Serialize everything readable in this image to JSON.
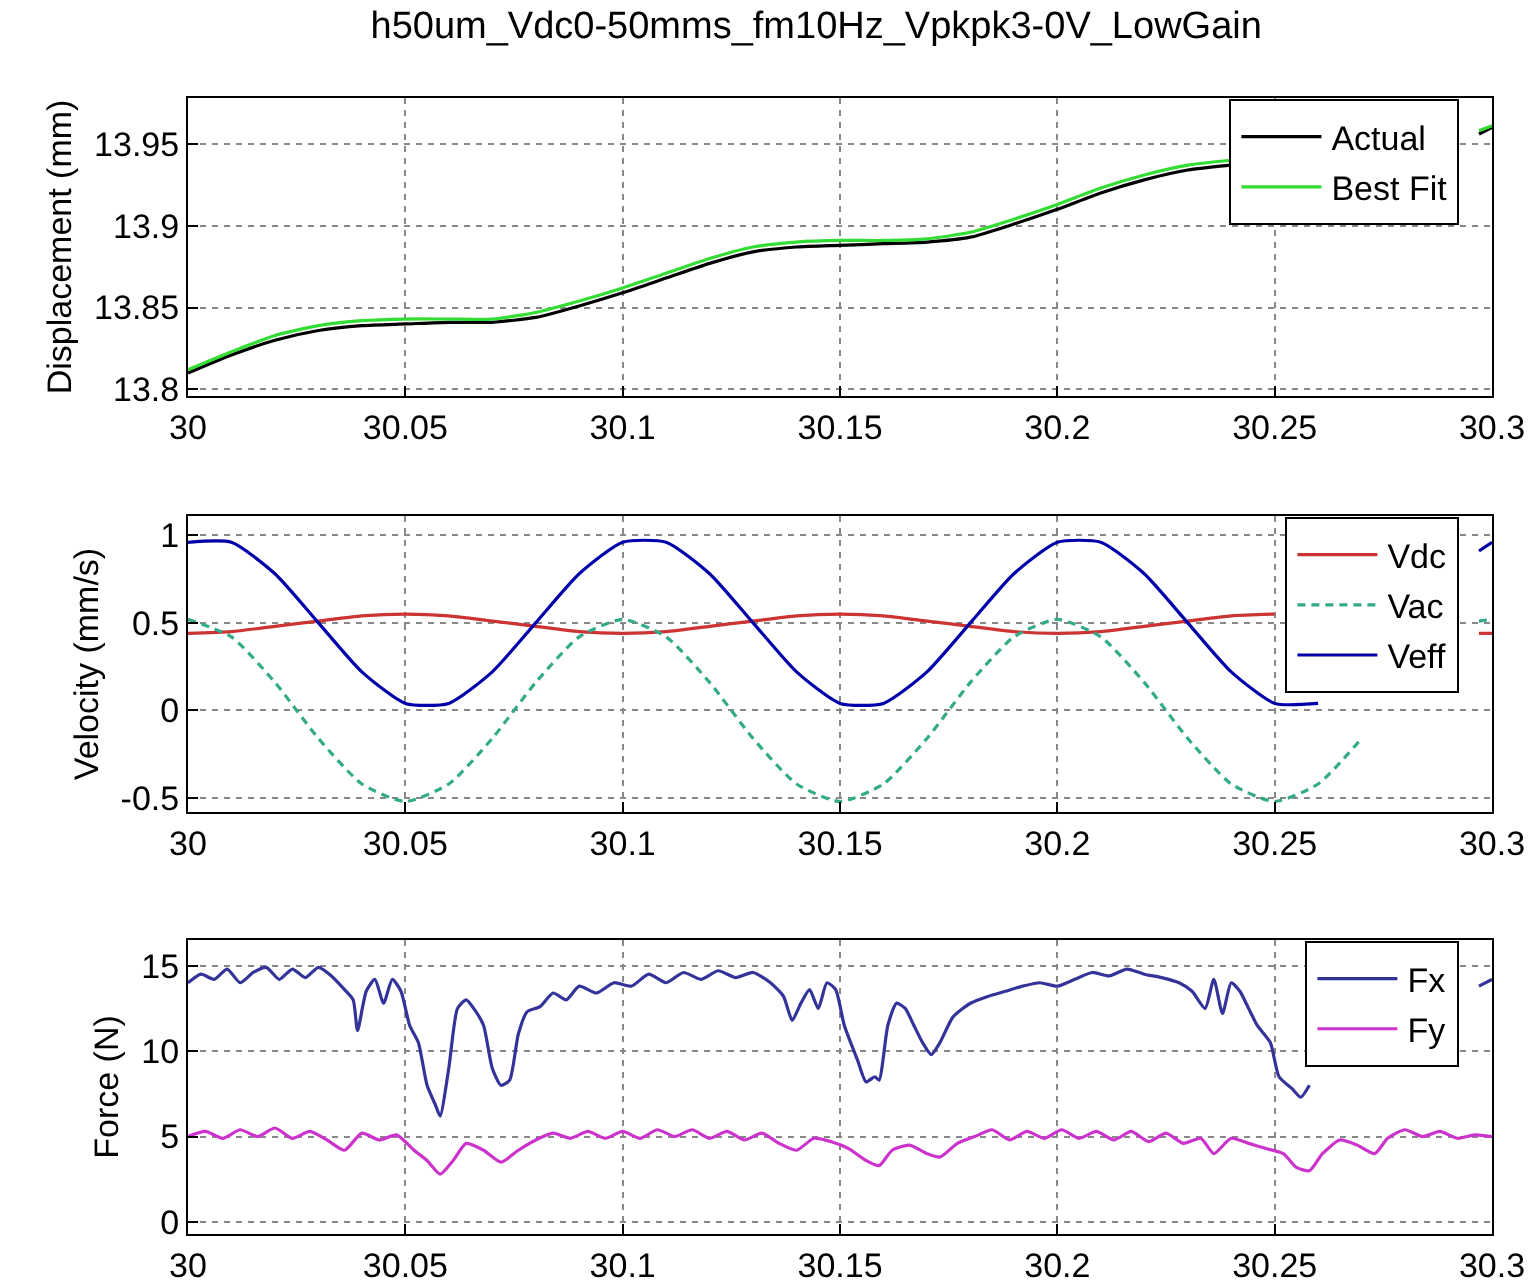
{
  "chart_data": [
    {
      "type": "line",
      "title": "h50um_Vdc0-50mms_fm10Hz_Vpkpk3-0V_LowGain",
      "ylabel": "Displacement (mm)",
      "x": [
        30,
        30.01,
        30.02,
        30.03,
        30.04,
        30.05,
        30.06,
        30.07,
        30.08,
        30.09,
        30.1,
        30.11,
        30.12,
        30.13,
        30.14,
        30.15,
        30.16,
        30.17,
        30.18,
        30.19,
        30.2,
        30.21,
        30.22,
        30.23,
        30.24,
        30.25,
        30.26,
        30.27,
        30.28,
        30.29,
        30.297,
        30.3
      ],
      "series": [
        {
          "name": "Actual",
          "color": "#000000",
          "line_style": "solid",
          "values": [
            13.81,
            13.821,
            13.83,
            13.836,
            13.839,
            13.84,
            13.841,
            13.841,
            13.844,
            13.851,
            13.859,
            13.868,
            13.877,
            13.884,
            13.887,
            13.888,
            13.889,
            13.89,
            13.893,
            13.901,
            13.91,
            13.92,
            13.928,
            13.934,
            13.937,
            null,
            null,
            null,
            null,
            null,
            13.956,
            13.96
          ]
        },
        {
          "name": "Best Fit",
          "color": "#33dd33",
          "line_style": "solid",
          "values": [
            13.812,
            13.823,
            13.833,
            13.839,
            13.842,
            13.843,
            13.843,
            13.843,
            13.847,
            13.854,
            13.862,
            13.871,
            13.88,
            13.887,
            13.89,
            13.891,
            13.891,
            13.892,
            13.896,
            13.904,
            13.913,
            13.923,
            13.931,
            13.937,
            13.94,
            null,
            null,
            null,
            null,
            null,
            13.958,
            13.961
          ]
        }
      ],
      "xlim": [
        30,
        30.3
      ],
      "xticks": [
        30,
        30.05,
        30.1,
        30.15,
        30.2,
        30.25,
        30.3
      ],
      "ylim": [
        13.796,
        13.978
      ],
      "yticks": [
        13.8,
        13.85,
        13.9,
        13.95
      ],
      "grid": true,
      "legend": "top right"
    },
    {
      "type": "line",
      "ylabel": "Velocity (mm/s)",
      "x": [
        30,
        30.01,
        30.02,
        30.03,
        30.04,
        30.05,
        30.06,
        30.07,
        30.08,
        30.09,
        30.1,
        30.11,
        30.12,
        30.13,
        30.14,
        30.15,
        30.16,
        30.17,
        30.18,
        30.19,
        30.2,
        30.21,
        30.22,
        30.23,
        30.24,
        30.25,
        30.26,
        30.27,
        30.28,
        30.29,
        30.297,
        30.3
      ],
      "series": [
        {
          "name": "Vdc",
          "color": "#cc3333",
          "line_style": "solid",
          "values": [
            0.44,
            0.45,
            0.48,
            0.51,
            0.54,
            0.55,
            0.54,
            0.51,
            0.48,
            0.45,
            0.44,
            0.45,
            0.48,
            0.51,
            0.54,
            0.55,
            0.54,
            0.51,
            0.48,
            0.45,
            0.44,
            0.45,
            0.48,
            0.51,
            0.54,
            0.55,
            null,
            null,
            null,
            null,
            0.44,
            0.44
          ]
        },
        {
          "name": "Vac",
          "color": "#33aa88",
          "line_style": "dashed",
          "values": [
            0.52,
            0.42,
            0.16,
            -0.16,
            -0.42,
            -0.52,
            -0.42,
            -0.16,
            0.16,
            0.42,
            0.52,
            0.42,
            0.16,
            -0.16,
            -0.42,
            -0.52,
            -0.42,
            -0.16,
            0.16,
            0.42,
            0.52,
            0.42,
            0.16,
            -0.16,
            -0.42,
            -0.52,
            -0.42,
            -0.16,
            null,
            null,
            0.51,
            0.52
          ]
        },
        {
          "name": "Veff",
          "color": "#0000aa",
          "line_style": "solid",
          "values": [
            0.96,
            0.96,
            0.78,
            0.5,
            0.22,
            0.04,
            0.04,
            0.22,
            0.5,
            0.78,
            0.96,
            0.96,
            0.78,
            0.5,
            0.22,
            0.04,
            0.04,
            0.22,
            0.5,
            0.78,
            0.96,
            0.96,
            0.78,
            0.5,
            0.22,
            0.04,
            0.04,
            null,
            null,
            null,
            0.91,
            0.96
          ]
        }
      ],
      "xlim": [
        30,
        30.3
      ],
      "xticks": [
        30,
        30.05,
        30.1,
        30.15,
        30.2,
        30.25,
        30.3
      ],
      "ylim": [
        -0.58,
        1.11
      ],
      "yticks": [
        -0.5,
        0,
        0.5,
        1
      ],
      "grid": true,
      "legend": "top right"
    },
    {
      "type": "line",
      "ylabel": "Force (N)",
      "series": [
        {
          "name": "Fx",
          "color": "#333399",
          "line_style": "solid",
          "x": [
            30,
            30.003,
            30.006,
            30.009,
            30.012,
            30.015,
            30.018,
            30.021,
            30.024,
            30.027,
            30.03,
            30.033,
            30.036,
            30.038,
            30.039,
            30.041,
            30.043,
            30.045,
            30.047,
            30.049,
            30.051,
            30.053,
            30.055,
            30.057,
            30.058,
            30.06,
            30.062,
            30.064,
            30.066,
            30.068,
            30.07,
            30.072,
            30.074,
            30.076,
            30.078,
            30.081,
            30.084,
            30.087,
            30.09,
            30.094,
            30.098,
            30.102,
            30.106,
            30.11,
            30.114,
            30.118,
            30.122,
            30.126,
            30.13,
            30.134,
            30.137,
            30.139,
            30.141,
            30.143,
            30.145,
            30.147,
            30.149,
            30.151,
            30.154,
            30.156,
            30.158,
            30.159,
            30.161,
            30.163,
            30.165,
            30.167,
            30.169,
            30.171,
            30.173,
            30.176,
            30.18,
            30.184,
            30.188,
            30.192,
            30.196,
            30.2,
            30.204,
            30.208,
            30.212,
            30.216,
            30.22,
            30.224,
            30.228,
            30.231,
            30.234,
            30.236,
            30.238,
            30.24,
            30.242,
            30.244,
            30.246,
            30.249,
            30.251,
            30.254,
            30.256,
            30.258,
            30.26,
            30.262,
            30.28,
            30.297,
            30.3
          ],
          "values": [
            14,
            14.5,
            14.2,
            14.8,
            14,
            14.6,
            14.9,
            14.2,
            14.8,
            14.3,
            14.9,
            14.4,
            13.6,
            13,
            11.2,
            13.5,
            14.2,
            12.8,
            14.2,
            13.5,
            11.5,
            10.5,
            8,
            6.8,
            6.2,
            9,
            12.5,
            13,
            12.4,
            11.5,
            9,
            8,
            8.3,
            11,
            12.3,
            12.6,
            13.4,
            13,
            13.8,
            13.4,
            14,
            13.8,
            14.5,
            14,
            14.6,
            14.2,
            14.7,
            14.3,
            14.6,
            14,
            13.2,
            11.8,
            12.8,
            13.6,
            12.5,
            14,
            13.6,
            11.5,
            9.5,
            8.2,
            8.5,
            8.3,
            11.5,
            12.8,
            12.5,
            11.5,
            10.5,
            9.8,
            10.5,
            12,
            12.8,
            13.2,
            13.5,
            13.8,
            14,
            13.8,
            14.2,
            14.6,
            14.4,
            14.8,
            14.5,
            14.3,
            14,
            13.5,
            12.5,
            14.2,
            12.2,
            14,
            13.5,
            12.5,
            11.5,
            10.5,
            8.5,
            7.8,
            7.3,
            8,
            null,
            null,
            null,
            13.8,
            14.2
          ]
        },
        {
          "name": "Fy",
          "color": "#cc33cc",
          "line_style": "solid",
          "x": [
            30,
            30.004,
            30.008,
            30.012,
            30.016,
            30.02,
            30.024,
            30.028,
            30.032,
            30.036,
            30.04,
            30.044,
            30.048,
            30.052,
            30.055,
            30.058,
            30.061,
            30.064,
            30.068,
            30.072,
            30.076,
            30.08,
            30.084,
            30.088,
            30.092,
            30.096,
            30.1,
            30.104,
            30.108,
            30.112,
            30.116,
            30.12,
            30.124,
            30.128,
            30.132,
            30.136,
            30.14,
            30.144,
            30.148,
            30.152,
            30.156,
            30.159,
            30.162,
            30.166,
            30.17,
            30.173,
            30.177,
            30.181,
            30.185,
            30.189,
            30.193,
            30.197,
            30.201,
            30.205,
            30.209,
            30.213,
            30.217,
            30.221,
            30.225,
            30.229,
            30.233,
            30.236,
            30.24,
            30.244,
            30.248,
            30.252,
            30.255,
            30.258,
            30.261,
            30.265,
            30.269,
            30.273,
            30.276,
            30.28,
            30.284,
            30.288,
            30.292,
            30.296,
            30.3
          ],
          "values": [
            5,
            5.3,
            4.9,
            5.4,
            5,
            5.5,
            4.9,
            5.3,
            4.8,
            4.2,
            5.2,
            4.8,
            5.1,
            4.2,
            3.6,
            2.8,
            3.6,
            4.6,
            4.2,
            3.5,
            4.2,
            4.8,
            5.2,
            4.9,
            5.3,
            4.9,
            5.3,
            4.9,
            5.4,
            5,
            5.4,
            4.9,
            5.3,
            4.8,
            5.2,
            4.6,
            4.2,
            4.9,
            4.7,
            4.3,
            3.6,
            3.3,
            4.2,
            4.5,
            4,
            3.8,
            4.6,
            5,
            5.4,
            4.8,
            5.3,
            4.9,
            5.4,
            4.9,
            5.3,
            4.8,
            5.3,
            4.7,
            5.2,
            4.6,
            4.9,
            4,
            4.9,
            4.6,
            4.3,
            4,
            3.2,
            3,
            4,
            4.8,
            4.5,
            4,
            4.9,
            5.4,
            5,
            5.3,
            4.9,
            5.1,
            5
          ]
        }
      ],
      "xlim": [
        30,
        30.3
      ],
      "xticks": [
        30,
        30.05,
        30.1,
        30.15,
        30.2,
        30.25,
        30.3
      ],
      "ylim": [
        -0.7,
        16.5
      ],
      "yticks": [
        0,
        5,
        10,
        15
      ],
      "grid": true,
      "legend": "top right"
    }
  ]
}
